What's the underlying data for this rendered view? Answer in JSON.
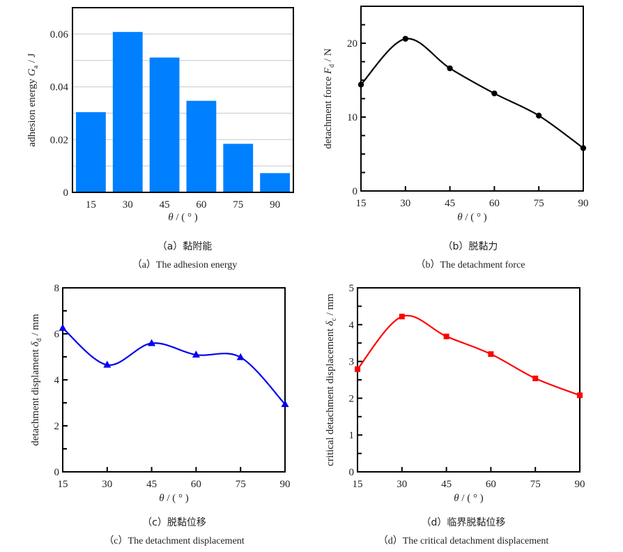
{
  "chart_data": [
    {
      "id": "a",
      "type": "bar",
      "title": "",
      "categories": [
        "15",
        "30",
        "45",
        "60",
        "75",
        "90"
      ],
      "values": [
        0.0304,
        0.0608,
        0.0511,
        0.0347,
        0.0184,
        0.0073
      ],
      "xlabel": "θ / ( ° )",
      "ylabel": "adhesion energy G_a / J",
      "ylabel_parts": {
        "pre": "adhesion energy ",
        "sym": "G",
        "sub": "a",
        "post": " / J"
      },
      "ylim": [
        0,
        0.07
      ],
      "yticks": [
        0,
        0.02,
        0.04,
        0.06
      ],
      "ytick_labels": [
        "0",
        "0.02",
        "0.04",
        "0.06"
      ],
      "grid_step": 0.01,
      "grid": true,
      "color": "#0080ff",
      "caption_cn": "（a）黏附能",
      "caption_en": "（a）The adhesion energy"
    },
    {
      "id": "b",
      "type": "line",
      "x": [
        15,
        30,
        45,
        60,
        75,
        90
      ],
      "values": [
        14.4,
        20.6,
        16.6,
        13.2,
        10.2,
        5.8
      ],
      "xlabel": "θ / ( ° )",
      "ylabel": "detachment force F_d / N",
      "ylabel_parts": {
        "pre": "detachment force ",
        "sym": "F",
        "sub": "d",
        "post": " / N"
      },
      "xlim": [
        15,
        90
      ],
      "xticks": [
        15,
        30,
        45,
        60,
        75,
        90
      ],
      "xtick_labels": [
        "15",
        "30",
        "45",
        "60",
        "75",
        "90"
      ],
      "ylim": [
        0,
        25
      ],
      "yticks": [
        0,
        10,
        20
      ],
      "ytick_labels": [
        "0",
        "10",
        "20"
      ],
      "minor_step": 2.5,
      "grid": false,
      "marker": "circle",
      "color": "#000000",
      "caption_cn": "（b）脱黏力",
      "caption_en": "（b）The detachment force"
    },
    {
      "id": "c",
      "type": "line",
      "x": [
        15,
        30,
        45,
        60,
        75,
        90
      ],
      "values": [
        6.25,
        4.65,
        5.59,
        5.09,
        4.98,
        2.94
      ],
      "xlabel": "θ / ( ° )",
      "ylabel": "detachment displament δ_d / mm",
      "ylabel_parts": {
        "pre": "detachment displament ",
        "sym": "δ",
        "sub": "d",
        "post": " / mm"
      },
      "xlim": [
        15,
        90
      ],
      "xticks": [
        15,
        30,
        45,
        60,
        75,
        90
      ],
      "xtick_labels": [
        "15",
        "30",
        "45",
        "60",
        "75",
        "90"
      ],
      "ylim": [
        0,
        8
      ],
      "yticks": [
        0,
        2,
        4,
        6,
        8
      ],
      "ytick_labels": [
        "0",
        "2",
        "4",
        "6",
        "8"
      ],
      "minor_step": 1,
      "grid": false,
      "marker": "triangle",
      "color": "#0000ee",
      "caption_cn": "（c）脱黏位移",
      "caption_en": "（c）The detachment displacement"
    },
    {
      "id": "d",
      "type": "line",
      "x": [
        15,
        30,
        45,
        60,
        75,
        90
      ],
      "values": [
        2.79,
        4.22,
        3.68,
        3.2,
        2.54,
        2.08
      ],
      "xlabel": "θ / ( ° )",
      "ylabel": "critical detachment displacement δ_c / mm",
      "ylabel_parts": {
        "pre": "critical detachment displacement ",
        "sym": "δ",
        "sub": "c",
        "post": " / mm"
      },
      "xlim": [
        15,
        90
      ],
      "xticks": [
        15,
        30,
        45,
        60,
        75,
        90
      ],
      "xtick_labels": [
        "15",
        "30",
        "45",
        "60",
        "75",
        "90"
      ],
      "ylim": [
        0,
        5
      ],
      "yticks": [
        0,
        1,
        2,
        3,
        4,
        5
      ],
      "ytick_labels": [
        "0",
        "1",
        "2",
        "3",
        "4",
        "5"
      ],
      "minor_step": 0.5,
      "grid": false,
      "marker": "square",
      "color": "#ff0000",
      "caption_cn": "（d）临界脱黏位移",
      "caption_en": "（d）The critical detachment displacement"
    }
  ]
}
